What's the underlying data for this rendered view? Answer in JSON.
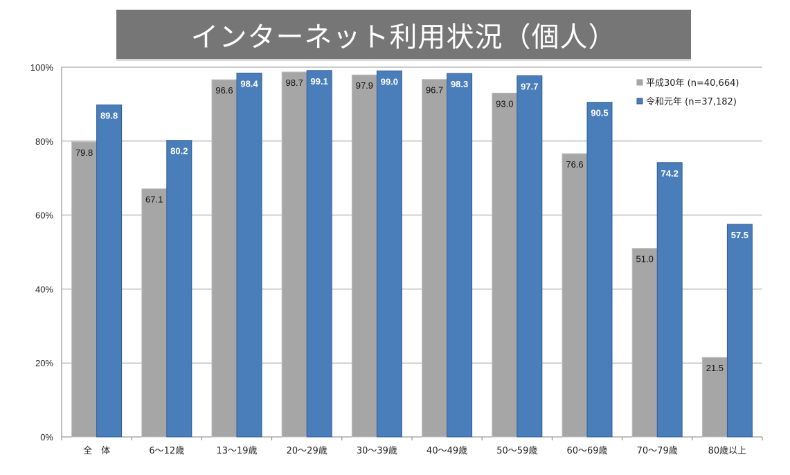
{
  "chart_data": {
    "type": "bar",
    "title": "インターネット利用状況（個人）",
    "categories": [
      "全　体",
      "6～12歳",
      "13～19歳",
      "20～29歳",
      "30～39歳",
      "40～49歳",
      "50～59歳",
      "60～69歳",
      "70～79歳",
      "80歳以上"
    ],
    "series": [
      {
        "name": "平成30年 (n=40,664)",
        "color": "#a6a6a6",
        "values": [
          79.8,
          67.1,
          96.6,
          98.7,
          97.9,
          96.7,
          93.0,
          76.6,
          51.0,
          21.5
        ]
      },
      {
        "name": "令和元年 (n=37,182)",
        "color": "#4a7ebb",
        "values": [
          89.8,
          80.2,
          98.4,
          99.1,
          99.0,
          98.3,
          97.7,
          90.5,
          74.2,
          57.5
        ]
      }
    ],
    "yticks": [
      "0%",
      "20%",
      "40%",
      "60%",
      "80%",
      "100%"
    ],
    "ylim": [
      0,
      100
    ],
    "grid": true,
    "legend_position": "top-right"
  }
}
